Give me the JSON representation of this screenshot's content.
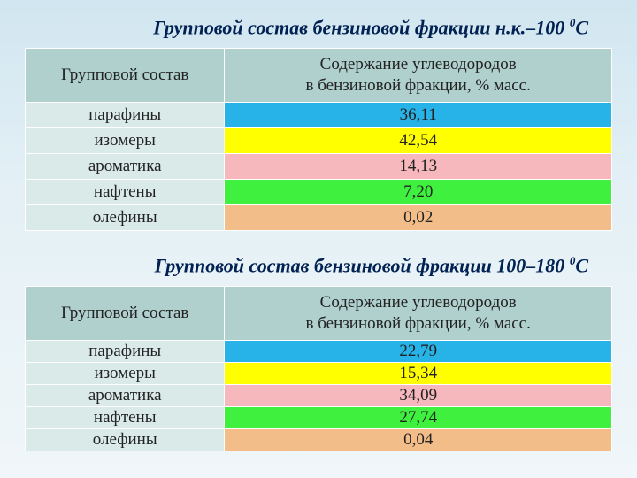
{
  "titles": {
    "t1_pre": "Групповой состав бензиновой фракции н.к.–100 ",
    "t1_sup": "0",
    "t1_post": "С",
    "t2_pre": "Групповой состав бензиновой фракции 100–180 ",
    "t2_sup": "0",
    "t2_post": "С"
  },
  "headers": {
    "col1": "Групповой состав",
    "col2_line1": "Содержание углеводородов",
    "col2_line2": "в бензиновой фракции, % масс."
  },
  "colors": {
    "header_bg": "#afd0cd",
    "alt_left": "#daeae9",
    "paraffin": "#27b3e8",
    "isomer": "#ffff00",
    "aromatic": "#f6b8bd",
    "naphthene": "#3ff03f",
    "olefin": "#f2bd89"
  },
  "table1": {
    "rows": [
      {
        "label": "парафины",
        "value": "36,11",
        "cell_bg_key": "paraffin",
        "left_bg_key": "alt_left"
      },
      {
        "label": "изомеры",
        "value": "42,54",
        "cell_bg_key": "isomer",
        "left_bg_key": "alt_left"
      },
      {
        "label": "ароматика",
        "value": "14,13",
        "cell_bg_key": "aromatic",
        "left_bg_key": "alt_left"
      },
      {
        "label": "нафтены",
        "value": "7,20",
        "cell_bg_key": "naphthene",
        "left_bg_key": "alt_left"
      },
      {
        "label": "олефины",
        "value": "0,02",
        "cell_bg_key": "olefin",
        "left_bg_key": "alt_left"
      }
    ]
  },
  "table2": {
    "rows": [
      {
        "label": "парафины",
        "value": "22,79",
        "cell_bg_key": "paraffin",
        "left_bg_key": "alt_left"
      },
      {
        "label": "изомеры",
        "value": "15,34",
        "cell_bg_key": "isomer",
        "left_bg_key": "alt_left"
      },
      {
        "label": "ароматика",
        "value": "34,09",
        "cell_bg_key": "aromatic",
        "left_bg_key": "alt_left"
      },
      {
        "label": "нафтены",
        "value": "27,74",
        "cell_bg_key": "naphthene",
        "left_bg_key": "alt_left"
      },
      {
        "label": "олефины",
        "value": "0,04",
        "cell_bg_key": "olefin",
        "left_bg_key": "alt_left"
      }
    ]
  }
}
